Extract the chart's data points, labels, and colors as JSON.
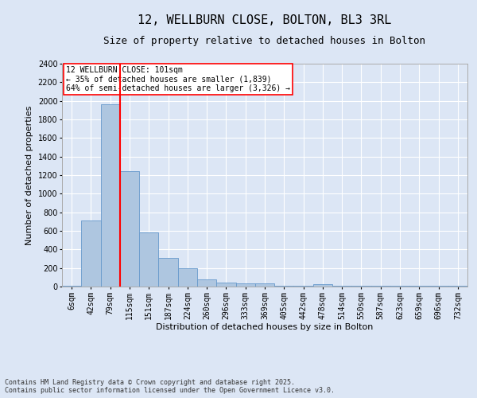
{
  "title": "12, WELLBURN CLOSE, BOLTON, BL3 3RL",
  "subtitle": "Size of property relative to detached houses in Bolton",
  "xlabel": "Distribution of detached houses by size in Bolton",
  "ylabel": "Number of detached properties",
  "categories": [
    "6sqm",
    "42sqm",
    "79sqm",
    "115sqm",
    "151sqm",
    "187sqm",
    "224sqm",
    "260sqm",
    "296sqm",
    "333sqm",
    "369sqm",
    "405sqm",
    "442sqm",
    "478sqm",
    "514sqm",
    "550sqm",
    "587sqm",
    "623sqm",
    "659sqm",
    "696sqm",
    "732sqm"
  ],
  "values": [
    10,
    710,
    1960,
    1240,
    580,
    305,
    200,
    80,
    45,
    35,
    35,
    5,
    5,
    25,
    5,
    5,
    5,
    5,
    5,
    5,
    5
  ],
  "bar_color": "#aec6e0",
  "bar_edge_color": "#6699cc",
  "vline_color": "red",
  "vline_pos": 2.5,
  "annotation_text": "12 WELLBURN CLOSE: 101sqm\n← 35% of detached houses are smaller (1,839)\n64% of semi-detached houses are larger (3,326) →",
  "annotation_box_color": "white",
  "annotation_box_edge": "red",
  "ylim": [
    0,
    2400
  ],
  "yticks": [
    0,
    200,
    400,
    600,
    800,
    1000,
    1200,
    1400,
    1600,
    1800,
    2000,
    2200,
    2400
  ],
  "background_color": "#dce6f5",
  "axes_bg_color": "#dce6f5",
  "grid_color": "white",
  "footer": "Contains HM Land Registry data © Crown copyright and database right 2025.\nContains public sector information licensed under the Open Government Licence v3.0.",
  "title_fontsize": 11,
  "subtitle_fontsize": 9,
  "xlabel_fontsize": 8,
  "ylabel_fontsize": 8,
  "tick_fontsize": 7,
  "footer_fontsize": 6,
  "annot_fontsize": 7
}
